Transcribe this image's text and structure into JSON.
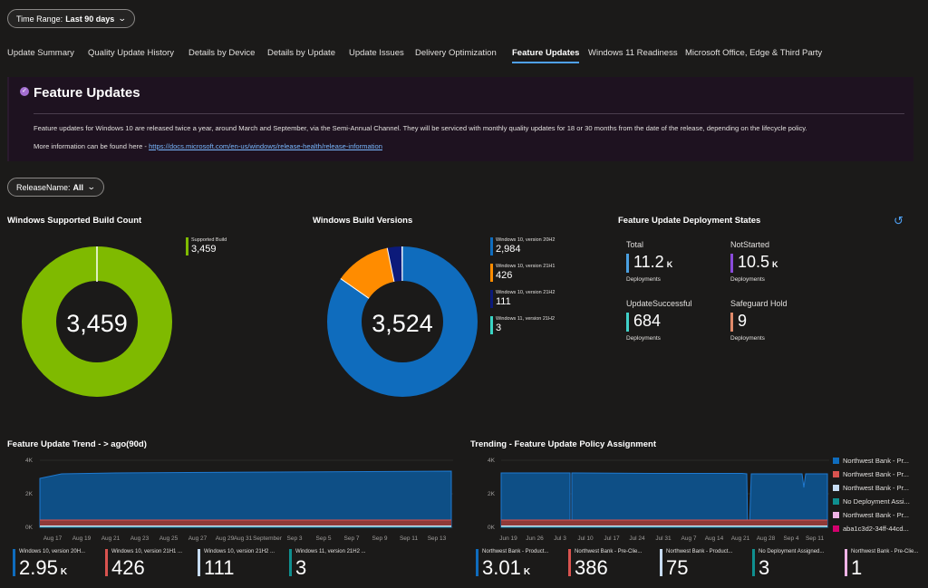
{
  "filters": {
    "time_range": {
      "label": "Time Range:",
      "value": "Last 90 days"
    },
    "release_name": {
      "label": "ReleaseName:",
      "value": "All"
    }
  },
  "tabs": [
    {
      "label": "Update Summary"
    },
    {
      "label": "Quality Update History"
    },
    {
      "label": "Details by Device"
    },
    {
      "label": "Details by Update"
    },
    {
      "label": "Update Issues"
    },
    {
      "label": "Delivery Optimization"
    },
    {
      "label": "Feature Updates"
    },
    {
      "label": "Windows 11 Readiness"
    },
    {
      "label": "Microsoft Office, Edge & Third Party"
    }
  ],
  "active_tab": "Feature Updates",
  "banner": {
    "title": "Feature Updates",
    "text1": "Feature updates for Windows 10 are released twice a year, around March and September, via the Semi-Annual Channel. They will be serviced with monthly quality updates for 18 or 30 months from the date of the release, depending on the lifecycle policy.",
    "text2_prefix": "More information can be found here - ",
    "link": "https://docs.microsoft.com/en-us/windows/release-health/release-information"
  },
  "supported_build": {
    "title": "Windows Supported Build Count",
    "center_value": "3,459",
    "legend": [
      {
        "label": "Supported Build",
        "value": "3,459",
        "color": "#7fba00"
      }
    ]
  },
  "build_versions": {
    "title": "Windows Build Versions",
    "center_value": "3,524",
    "legend": [
      {
        "label": "Windows 10, version 20H2",
        "value": "2,984",
        "color": "#0f6cbd"
      },
      {
        "label": "Windows 10, version 21H1",
        "value": "426",
        "color": "#ff8c00"
      },
      {
        "label": "Windows 10, version 21H2",
        "value": "111",
        "color": "#0c1a7a"
      },
      {
        "label": "Windows 11, version 21H2",
        "value": "3",
        "color": "#3ad4c4"
      }
    ]
  },
  "deployment_states": {
    "title": "Feature Update Deployment States",
    "kpis": [
      {
        "label": "Total",
        "value": "11.2",
        "unit": "K",
        "sub": "Deployments",
        "color": "#4a9fe0"
      },
      {
        "label": "NotStarted",
        "value": "10.5",
        "unit": "K",
        "sub": "Deployments",
        "color": "#8a4bdb"
      },
      {
        "label": "UpdateSuccessful",
        "value": "684",
        "unit": "",
        "sub": "Deployments",
        "color": "#40d0c8"
      },
      {
        "label": "Safeguard Hold",
        "value": "9",
        "unit": "",
        "sub": "Deployments",
        "color": "#e08a6a"
      }
    ]
  },
  "trend": {
    "title": "Feature Update Trend - > ago(90d)",
    "y_ticks": [
      "4K",
      "2K",
      "0K"
    ],
    "x_ticks": [
      "Aug 17",
      "Aug 19",
      "Aug 21",
      "Aug 23",
      "Aug 25",
      "Aug 27",
      "Aug 29",
      "Aug 31",
      "September",
      "Sep 3",
      "Sep 5",
      "Sep 7",
      "Sep 9",
      "Sep 11",
      "Sep 13"
    ],
    "kpis": [
      {
        "label": "Windows 10, version 20H...",
        "value": "2.95",
        "unit": "K",
        "color": "#0f6cbd"
      },
      {
        "label": "Windows 10, version 21H1 ...",
        "value": "426",
        "unit": "",
        "color": "#d9534f"
      },
      {
        "label": "Windows 10, version 21H2 ...",
        "value": "111",
        "unit": "",
        "color": "#c7dcf2"
      },
      {
        "label": "Windows 11, version 21H2 ...",
        "value": "3",
        "unit": "",
        "color": "#0f8f8f"
      }
    ]
  },
  "policy": {
    "title": "Trending - Feature Update Policy Assignment",
    "y_ticks": [
      "4K",
      "2K",
      "0K"
    ],
    "x_ticks": [
      "Jun 19",
      "Jun 26",
      "Jul 3",
      "Jul 10",
      "Jul 17",
      "Jul 24",
      "Jul 31",
      "Aug 7",
      "Aug 14",
      "Aug 21",
      "Aug 28",
      "Sep 4",
      "Sep 11"
    ],
    "legend": [
      {
        "label": "Northwest Bank - Pr...",
        "color": "#0f6cbd"
      },
      {
        "label": "Northwest Bank - Pr...",
        "color": "#d9534f"
      },
      {
        "label": "Northwest Bank - Pr...",
        "color": "#c7dcf2"
      },
      {
        "label": "No Deployment Assi...",
        "color": "#0f8f8f"
      },
      {
        "label": "Northwest Bank - Pr...",
        "color": "#f0b3e6"
      },
      {
        "label": "aba1c3d2-34ff-44cd...",
        "color": "#d4006e"
      }
    ],
    "kpis": [
      {
        "label": "Northwest Bank - Product...",
        "value": "3.01",
        "unit": "K",
        "color": "#0f6cbd"
      },
      {
        "label": "Northwest Bank - Pre-Clie...",
        "value": "386",
        "unit": "",
        "color": "#d9534f"
      },
      {
        "label": "Northwest Bank - Product...",
        "value": "75",
        "unit": "",
        "color": "#c7dcf2"
      },
      {
        "label": "No Deployment Assigned...",
        "value": "3",
        "unit": "",
        "color": "#0f8f8f"
      },
      {
        "label": "Northwest Bank - Pre-Clie...",
        "value": "1",
        "unit": "",
        "color": "#f0b3e6"
      }
    ]
  },
  "chart_data": [
    {
      "type": "pie",
      "categories": [
        "Supported Build"
      ],
      "values": [
        3459
      ]
    },
    {
      "type": "pie",
      "categories": [
        "Windows 10, version 20H2",
        "Windows 10, version 21H1",
        "Windows 10, version 21H2",
        "Windows 11, version 21H2"
      ],
      "values": [
        2984,
        426,
        111,
        3
      ]
    },
    {
      "type": "area",
      "title": "Feature Update Trend - > ago(90d)",
      "ylim": [
        0,
        4000
      ],
      "series": [
        {
          "name": "Windows 10, version 20H2",
          "values": [
            2950
          ]
        },
        {
          "name": "Windows 10, version 21H1",
          "values": [
            426
          ]
        },
        {
          "name": "Windows 10, version 21H2",
          "values": [
            111
          ]
        },
        {
          "name": "Windows 11, version 21H2",
          "values": [
            3
          ]
        }
      ]
    },
    {
      "type": "area",
      "title": "Trending - Feature Update Policy Assignment",
      "ylim": [
        0,
        4000
      ],
      "series": [
        {
          "name": "Northwest Bank - Product...",
          "values": [
            3010
          ]
        },
        {
          "name": "Northwest Bank - Pre-Clie...",
          "values": [
            386
          ]
        },
        {
          "name": "Northwest Bank - Product...",
          "values": [
            75
          ]
        },
        {
          "name": "No Deployment Assigned...",
          "values": [
            3
          ]
        },
        {
          "name": "Northwest Bank - Pre-Clie...",
          "values": [
            1
          ]
        }
      ]
    }
  ]
}
